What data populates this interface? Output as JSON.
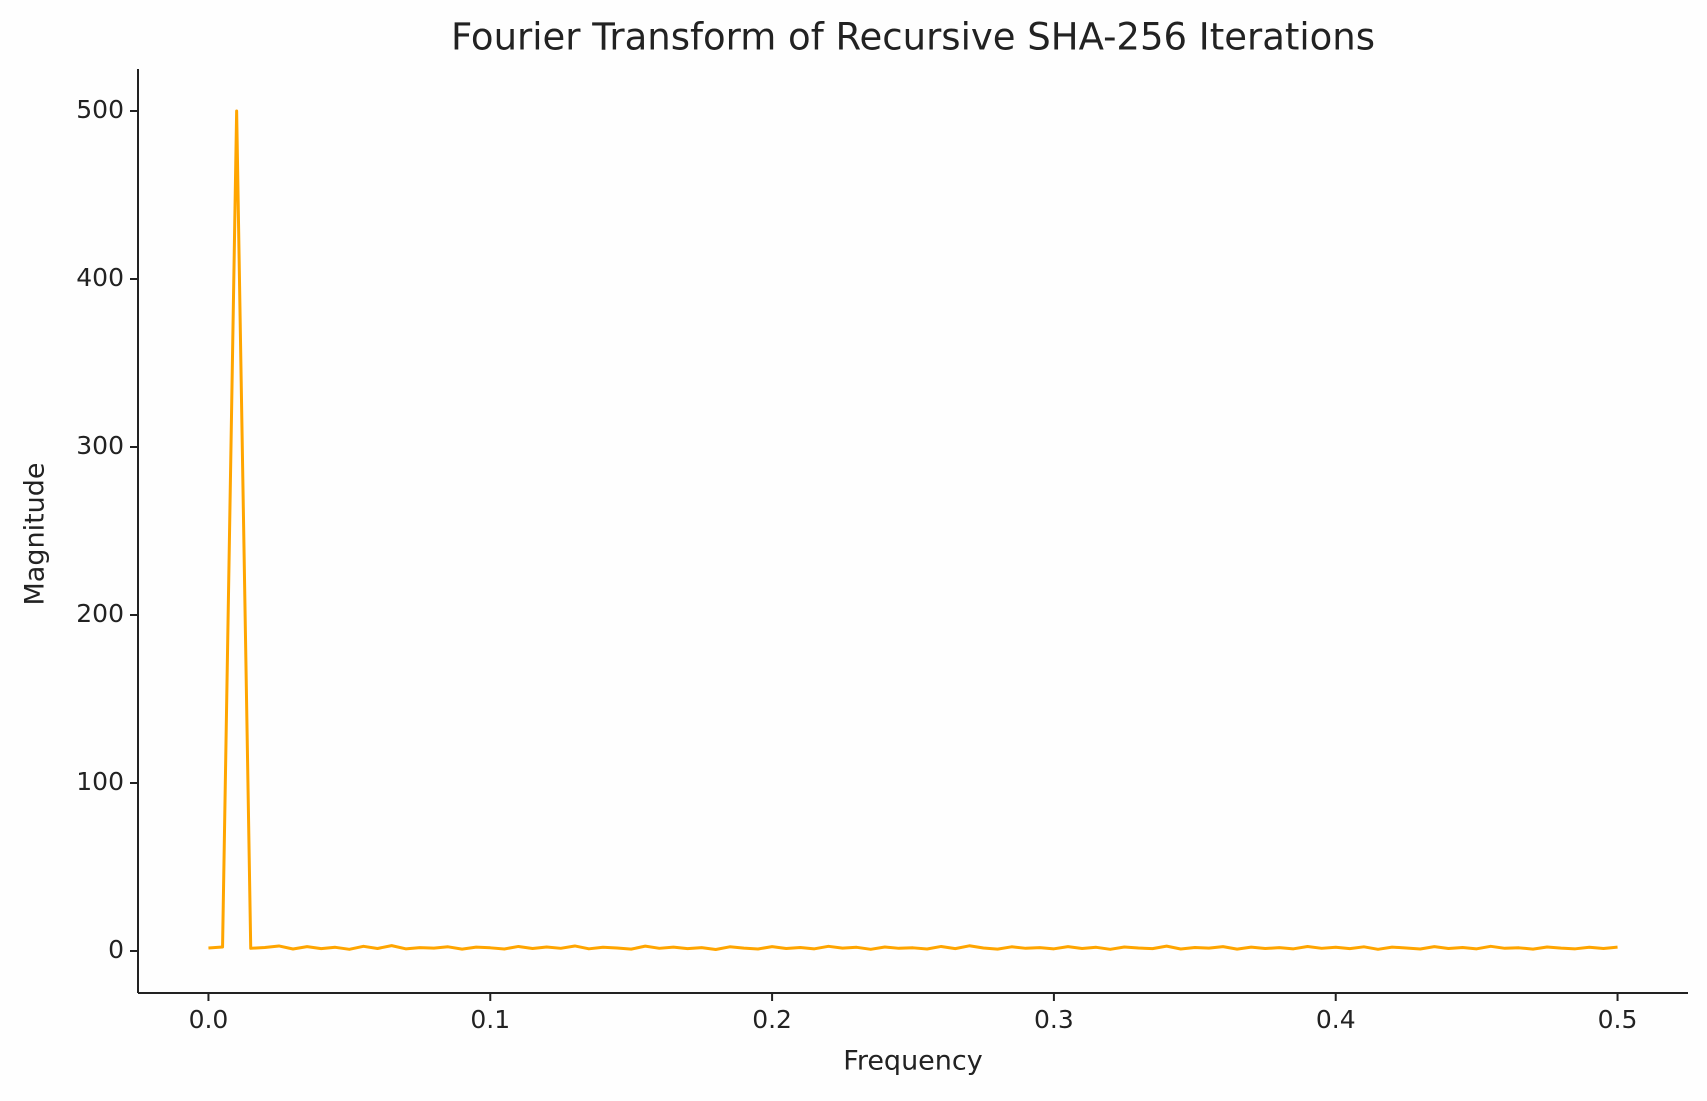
{
  "chart_data": {
    "type": "line",
    "title": "Fourier Transform of Recursive SHA-256 Iterations",
    "x_label": "Frequency",
    "y_label": "Magnitude",
    "x": [
      0.0,
      0.005,
      0.01,
      0.015,
      0.02,
      0.025,
      0.03,
      0.035,
      0.04,
      0.045,
      0.05,
      0.055,
      0.06,
      0.065,
      0.07,
      0.075,
      0.08,
      0.085,
      0.09,
      0.095,
      0.1,
      0.105,
      0.11,
      0.115,
      0.12,
      0.125,
      0.13,
      0.135,
      0.14,
      0.145,
      0.15,
      0.155,
      0.16,
      0.165,
      0.17,
      0.175,
      0.18,
      0.185,
      0.19,
      0.195,
      0.2,
      0.205,
      0.21,
      0.215,
      0.22,
      0.225,
      0.23,
      0.235,
      0.24,
      0.245,
      0.25,
      0.255,
      0.26,
      0.265,
      0.27,
      0.275,
      0.28,
      0.285,
      0.29,
      0.295,
      0.3,
      0.305,
      0.31,
      0.315,
      0.32,
      0.325,
      0.33,
      0.335,
      0.34,
      0.345,
      0.35,
      0.355,
      0.36,
      0.365,
      0.37,
      0.375,
      0.38,
      0.385,
      0.39,
      0.395,
      0.4,
      0.405,
      0.41,
      0.415,
      0.42,
      0.425,
      0.43,
      0.435,
      0.44,
      0.445,
      0.45,
      0.455,
      0.46,
      0.465,
      0.47,
      0.475,
      0.48,
      0.485,
      0.49,
      0.495,
      0.5
    ],
    "series": [
      {
        "name": "Magnitude",
        "color": "#ffa500",
        "values": [
          1.8,
          2.4,
          500,
          1.6,
          2.1,
          3.0,
          1.2,
          2.6,
          1.4,
          2.2,
          1.0,
          2.8,
          1.5,
          3.2,
          1.3,
          2.0,
          1.7,
          2.5,
          1.1,
          2.3,
          1.9,
          1.2,
          2.7,
          1.5,
          2.4,
          1.6,
          3.0,
          1.3,
          2.2,
          1.8,
          1.1,
          2.9,
          1.6,
          2.3,
          1.4,
          2.0,
          0.9,
          2.5,
          1.7,
          1.2,
          2.6,
          1.5,
          2.1,
          1.3,
          2.8,
          1.7,
          2.2,
          1.0,
          2.4,
          1.6,
          1.9,
          1.2,
          2.7,
          1.4,
          3.1,
          1.8,
          1.1,
          2.5,
          1.6,
          2.0,
          1.3,
          2.6,
          1.5,
          2.2,
          1.0,
          2.4,
          1.8,
          1.4,
          2.9,
          1.2,
          2.1,
          1.7,
          2.6,
          1.1,
          2.3,
          1.5,
          2.0,
          1.3,
          2.7,
          1.6,
          2.2,
          1.4,
          2.5,
          1.0,
          2.3,
          1.8,
          1.2,
          2.6,
          1.5,
          2.1,
          1.3,
          2.8,
          1.6,
          1.9,
          1.1,
          2.4,
          1.7,
          1.3,
          2.2,
          1.5,
          2.3
        ]
      }
    ],
    "xlim": [
      -0.025,
      0.525
    ],
    "ylim": [
      -25,
      525
    ],
    "xticks": [
      {
        "value": 0,
        "label": "0.0"
      },
      0.1,
      0.2,
      0.3,
      0.4,
      0.5
    ],
    "yticks": [
      0,
      100,
      200,
      300,
      400,
      500
    ]
  }
}
